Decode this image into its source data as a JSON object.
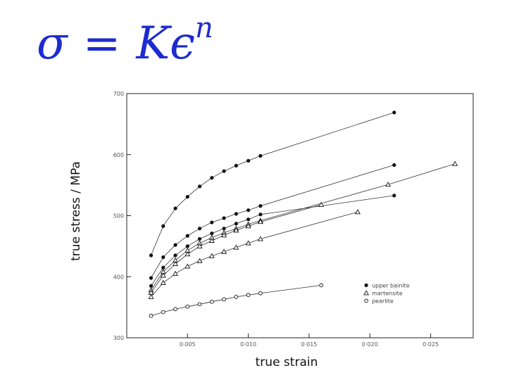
{
  "formula": {
    "lhs": "σ",
    "eq": "=",
    "rhs_base": "Kϵ",
    "rhs_exp": "n"
  },
  "chart_data": {
    "type": "scatter",
    "xlabel": "true strain",
    "ylabel": "true stress / MPa",
    "xlim": [
      0.0,
      0.0285
    ],
    "ylim": [
      300,
      700
    ],
    "x_ticks": [
      0.005,
      0.01,
      0.015,
      0.02,
      0.025
    ],
    "x_tick_labels": [
      "0·005",
      "0·010",
      "0·015",
      "0·020",
      "0·025"
    ],
    "y_ticks": [
      300,
      400,
      500,
      600,
      700
    ],
    "y_tick_labels": [
      "300",
      "400",
      "500",
      "600",
      "700"
    ],
    "grid": false,
    "legend_position": "lower-right",
    "legend": [
      {
        "marker": "filled-circle",
        "label": "upper bainite"
      },
      {
        "marker": "triangle",
        "label": "martensite"
      },
      {
        "marker": "open-circle",
        "label": "pearlite"
      }
    ],
    "series": [
      {
        "marker": "filled-circle",
        "x": [
          0.002,
          0.003,
          0.004,
          0.005,
          0.006,
          0.007,
          0.008,
          0.009,
          0.01,
          0.011,
          0.022
        ],
        "y": [
          435,
          483,
          512,
          531,
          548,
          562,
          573,
          582,
          590,
          598,
          669
        ]
      },
      {
        "marker": "filled-circle",
        "x": [
          0.002,
          0.003,
          0.004,
          0.005,
          0.006,
          0.007,
          0.008,
          0.009,
          0.01,
          0.011,
          0.022
        ],
        "y": [
          398,
          432,
          452,
          467,
          479,
          489,
          496,
          503,
          509,
          516,
          583
        ]
      },
      {
        "marker": "filled-circle",
        "x": [
          0.002,
          0.003,
          0.004,
          0.005,
          0.006,
          0.007,
          0.008,
          0.009,
          0.01,
          0.011,
          0.022
        ],
        "y": [
          385,
          415,
          435,
          450,
          462,
          471,
          479,
          487,
          494,
          502,
          533
        ]
      },
      {
        "marker": "triangle",
        "x": [
          0.002,
          0.003,
          0.004,
          0.005,
          0.006,
          0.007,
          0.008,
          0.009,
          0.01,
          0.011,
          0.0215,
          0.027
        ],
        "y": [
          378,
          408,
          427,
          443,
          455,
          464,
          472,
          479,
          486,
          492,
          551,
          585
        ]
      },
      {
        "marker": "triangle",
        "x": [
          0.002,
          0.003,
          0.004,
          0.005,
          0.006,
          0.007,
          0.008,
          0.009,
          0.01,
          0.011,
          0.016
        ],
        "y": [
          374,
          402,
          421,
          437,
          450,
          459,
          468,
          476,
          483,
          490,
          518
        ]
      },
      {
        "marker": "triangle",
        "x": [
          0.002,
          0.003,
          0.004,
          0.005,
          0.006,
          0.007,
          0.008,
          0.009,
          0.01,
          0.011,
          0.019
        ],
        "y": [
          367,
          390,
          405,
          417,
          426,
          434,
          441,
          448,
          455,
          462,
          506
        ]
      },
      {
        "marker": "open-circle",
        "x": [
          0.002,
          0.003,
          0.004,
          0.005,
          0.006,
          0.007,
          0.008,
          0.009,
          0.01,
          0.011,
          0.016
        ],
        "y": [
          336,
          342,
          347,
          351,
          355,
          359,
          363,
          367,
          370,
          373,
          386
        ]
      }
    ]
  }
}
